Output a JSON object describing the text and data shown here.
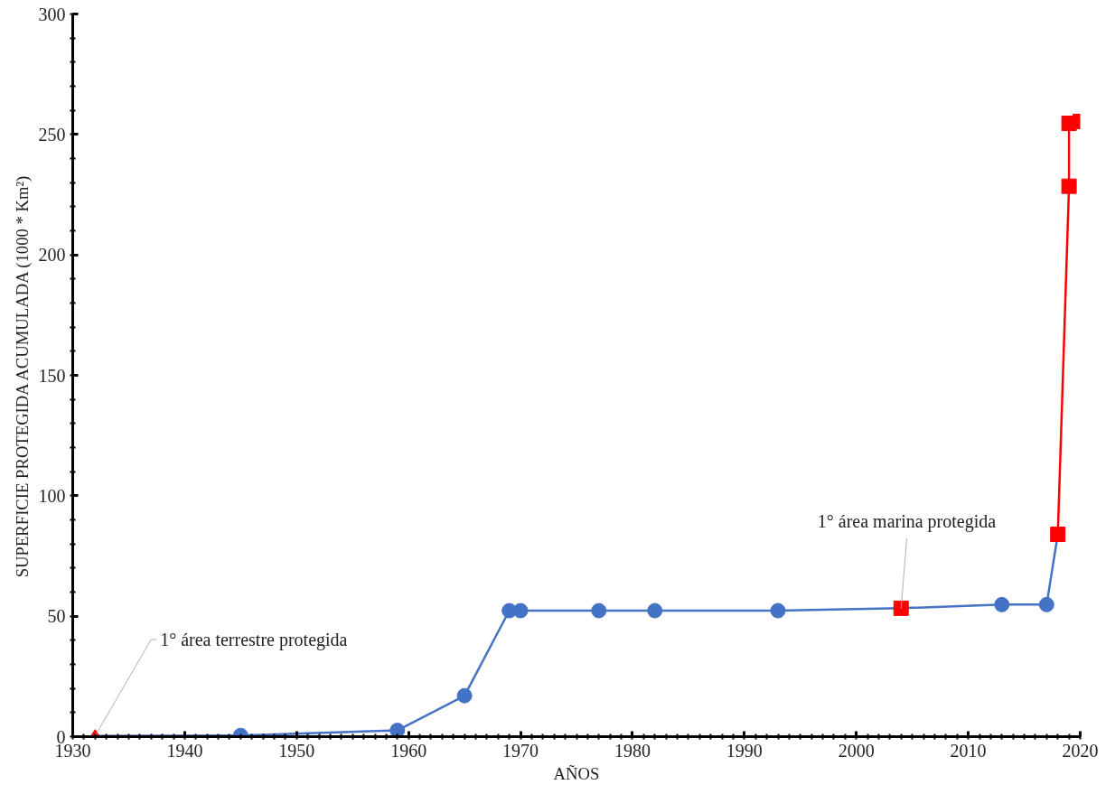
{
  "chart_data": {
    "type": "line",
    "xlabel": "AÑOS",
    "ylabel": "SUPERFICIE PROTEGIDA ACUMULADA (1000 * Km²)",
    "xlim": [
      1930,
      2020
    ],
    "xticks": [
      1930,
      1940,
      1950,
      1960,
      1970,
      1980,
      1990,
      2000,
      2010,
      2020
    ],
    "ylim": [
      0,
      300
    ],
    "yticks": [
      0,
      50,
      100,
      150,
      200,
      250,
      300
    ],
    "grid": false,
    "series": [
      {
        "marker": "none",
        "color": "#4472c4",
        "x": [
          1932,
          1945,
          1959,
          1965,
          1969,
          1970,
          1977,
          1982,
          1993,
          2004,
          2013,
          2017,
          2018
        ],
        "values": [
          0.3,
          0.5,
          2.6,
          17,
          52.3,
          52.3,
          52.3,
          52.3,
          52.3,
          53.3,
          54.8,
          54.8,
          84
        ]
      },
      {
        "type": "scatter",
        "marker": "circle",
        "color": "#4472c4",
        "x": [
          1945,
          1959,
          1965,
          1969,
          1970,
          1977,
          1982,
          1993,
          2013,
          2017
        ],
        "values": [
          0.5,
          2.6,
          17,
          52.3,
          52.3,
          52.3,
          52.3,
          52.3,
          54.8,
          54.8
        ]
      },
      {
        "marker": "square",
        "color": "#ff0000",
        "x": [
          2018,
          2019,
          2019,
          2020
        ],
        "values": [
          84,
          228.5,
          254.6,
          255.4
        ]
      },
      {
        "type": "scatter",
        "marker": "square",
        "color": "#ff0000",
        "x": [
          2004
        ],
        "values": [
          53.3
        ]
      },
      {
        "type": "scatter",
        "marker": "diamond",
        "color": "#ff0000",
        "x": [
          1932
        ],
        "values": [
          0.3
        ]
      }
    ],
    "annotations": [
      {
        "text": "1° área terrestre protegida",
        "x": 1932,
        "y": 0.3
      },
      {
        "text": "1° área marina protegida",
        "x": 2004,
        "y": 53.3
      }
    ]
  }
}
